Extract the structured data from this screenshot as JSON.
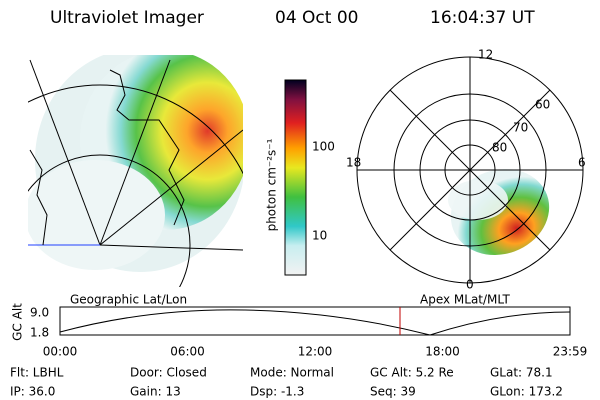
{
  "header": {
    "title": "Ultraviolet Imager",
    "date": "04 Oct 00",
    "time": "16:04:37 UT"
  },
  "colorbar": {
    "label": "photon cm⁻²s⁻¹",
    "ticks": [
      "100",
      "10"
    ]
  },
  "polar_labels": {
    "top": "12",
    "left": "18",
    "right": "6",
    "bottom": "0",
    "rings": [
      "60",
      "70",
      "80"
    ]
  },
  "captions": {
    "left": "Geographic Lat/Lon",
    "right": "Apex MLat/MLT"
  },
  "altitude_plot": {
    "ylabel": "GC Alt",
    "yticks": [
      "9.0",
      "1.8"
    ],
    "xticks": [
      "00:00",
      "06:00",
      "12:00",
      "18:00",
      "23:59"
    ]
  },
  "footer": [
    [
      "Flt: LBHL",
      "Door: Closed",
      "Mode: Normal",
      "GC Alt: 5.2 Re",
      "GLat: 78.1"
    ],
    [
      "IP: 36.0",
      "Gain: 13",
      "Dsp: -1.3",
      "Seq: 39",
      "GLon: 173.2"
    ]
  ]
}
